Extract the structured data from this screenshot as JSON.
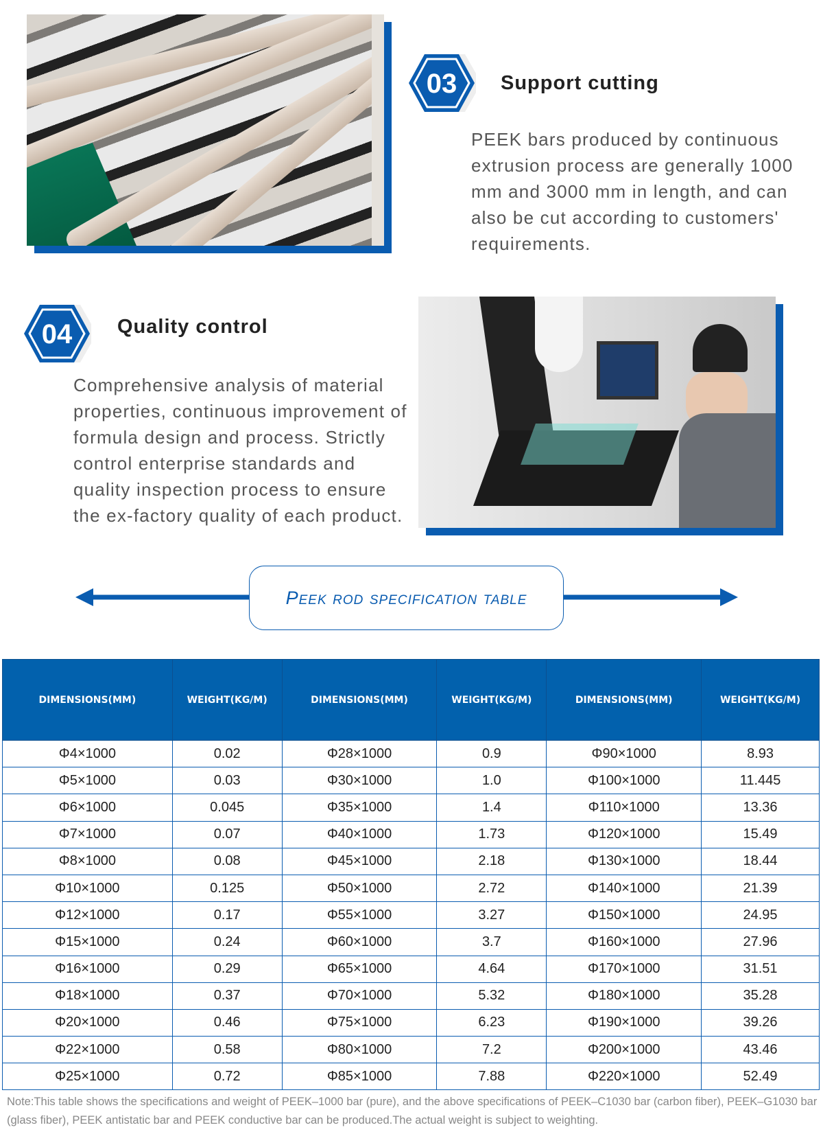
{
  "section03": {
    "number": "03",
    "title": "Support cutting",
    "text": "PEEK bars produced by continuous extrusion process are generally 1000 mm and 3000 mm in length, and can also be cut according to customers' requirements."
  },
  "section04": {
    "number": "04",
    "title": "Quality control",
    "text": "Comprehensive analysis of material properties, continuous improvement of formula design and process. Strictly control enterprise standards and quality inspection process to ensure the ex-factory quality of each product."
  },
  "spec_title": "Peek rod specification table",
  "colors": {
    "accent": "#0a5cb0",
    "header_bg": "#0261ad"
  },
  "table": {
    "headers": [
      "DIMENSIONS(MM)",
      "WEIGHT(KG/M)",
      "DIMENSIONS(MM)",
      "WEIGHT(KG/M)",
      "DIMENSIONS(MM)",
      "WEIGHT(KG/M)"
    ],
    "rows": [
      [
        "Φ4×1000",
        "0.02",
        "Φ28×1000",
        "0.9",
        "Φ90×1000",
        "8.93"
      ],
      [
        "Φ5×1000",
        "0.03",
        "Φ30×1000",
        "1.0",
        "Φ100×1000",
        "11.445"
      ],
      [
        "Φ6×1000",
        "0.045",
        "Φ35×1000",
        "1.4",
        "Φ110×1000",
        "13.36"
      ],
      [
        "Φ7×1000",
        "0.07",
        "Φ40×1000",
        "1.73",
        "Φ120×1000",
        "15.49"
      ],
      [
        "Φ8×1000",
        "0.08",
        "Φ45×1000",
        "2.18",
        "Φ130×1000",
        "18.44"
      ],
      [
        "Φ10×1000",
        "0.125",
        "Φ50×1000",
        "2.72",
        "Φ140×1000",
        "21.39"
      ],
      [
        "Φ12×1000",
        "0.17",
        "Φ55×1000",
        "3.27",
        "Φ150×1000",
        "24.95"
      ],
      [
        "Φ15×1000",
        "0.24",
        "Φ60×1000",
        "3.7",
        "Φ160×1000",
        "27.96"
      ],
      [
        "Φ16×1000",
        "0.29",
        "Φ65×1000",
        "4.64",
        "Φ170×1000",
        "31.51"
      ],
      [
        "Φ18×1000",
        "0.37",
        "Φ70×1000",
        "5.32",
        "Φ180×1000",
        "35.28"
      ],
      [
        "Φ20×1000",
        "0.46",
        "Φ75×1000",
        "6.23",
        "Φ190×1000",
        "39.26"
      ],
      [
        "Φ22×1000",
        "0.58",
        "Φ80×1000",
        "7.2",
        "Φ200×1000",
        "43.46"
      ],
      [
        "Φ25×1000",
        "0.72",
        "Φ85×1000",
        "7.88",
        "Φ220×1000",
        "52.49"
      ]
    ]
  },
  "note": "Note:This table shows the specifications and weight of PEEK–1000 bar (pure), and the above specifications of PEEK–C1030 bar (carbon fiber), PEEK–G1030 bar (glass fiber), PEEK antistatic bar and PEEK conductive bar can be produced.The actual weight is subject to weighting."
}
